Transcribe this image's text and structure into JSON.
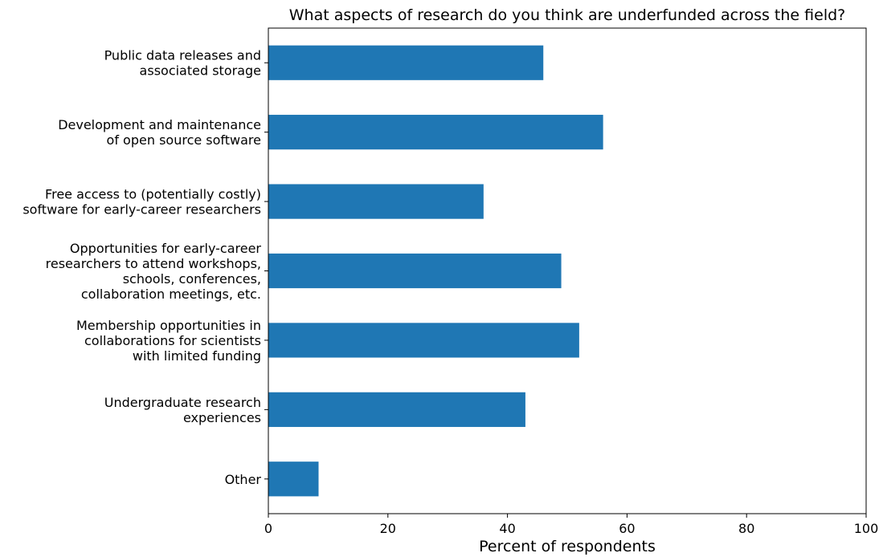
{
  "chart_data": {
    "type": "bar",
    "orientation": "horizontal",
    "title": "What aspects of research do you think are underfunded across the field?",
    "xlabel": "Percent of respondents",
    "ylabel": "",
    "xlim": [
      0,
      100
    ],
    "xticks": [
      0,
      20,
      40,
      60,
      80,
      100
    ],
    "grid": false,
    "bar_color": "#1f77b4",
    "categories": [
      "Public data releases and\nassociated storage",
      "Development and maintenance\nof open source software",
      "Free access to (potentially costly)\nsoftware for early-career researchers",
      "Opportunities for early-career\nresearchers to attend workshops,\nschools, conferences,\ncollaboration meetings, etc.",
      "Membership opportunities in\ncollaborations for scientists\nwith limited funding",
      "Undergraduate research\nexperiences",
      "Other"
    ],
    "values": [
      46,
      56,
      36,
      49,
      52,
      43,
      8.4
    ]
  }
}
